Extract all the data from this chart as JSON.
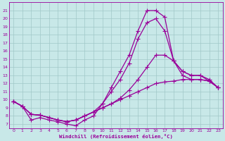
{
  "xlabel": "Windchill (Refroidissement éolien,°C)",
  "bg_color": "#c8e8e8",
  "grid_color": "#a0c8c8",
  "line_color": "#990099",
  "xlim": [
    -0.5,
    23.5
  ],
  "ylim": [
    6.5,
    22.0
  ],
  "xticks": [
    0,
    1,
    2,
    3,
    4,
    5,
    6,
    7,
    8,
    9,
    10,
    11,
    12,
    13,
    14,
    15,
    16,
    17,
    18,
    19,
    20,
    21,
    22,
    23
  ],
  "yticks": [
    7,
    8,
    9,
    10,
    11,
    12,
    13,
    14,
    15,
    16,
    17,
    18,
    19,
    20,
    21
  ],
  "line1_x": [
    0,
    1,
    2,
    3,
    4,
    5,
    6,
    7,
    8,
    9,
    10,
    11,
    12,
    13,
    14,
    15,
    16,
    17,
    18,
    19,
    20,
    21,
    22,
    23
  ],
  "line1_y": [
    9.8,
    9.2,
    8.2,
    8.1,
    7.8,
    7.5,
    7.3,
    7.5,
    8.0,
    8.5,
    9.0,
    9.5,
    10.0,
    10.5,
    11.0,
    11.5,
    12.0,
    12.2,
    12.3,
    12.5,
    12.5,
    12.5,
    12.3,
    11.5
  ],
  "line2_x": [
    0,
    1,
    2,
    3,
    4,
    5,
    6,
    7,
    8,
    9,
    10,
    11,
    12,
    13,
    14,
    15,
    16,
    17,
    18,
    19,
    20,
    21,
    22,
    23
  ],
  "line2_y": [
    9.8,
    9.2,
    8.2,
    8.1,
    7.8,
    7.5,
    7.3,
    7.5,
    8.0,
    8.5,
    9.0,
    9.5,
    10.2,
    11.2,
    12.5,
    14.0,
    15.5,
    15.5,
    14.8,
    13.5,
    13.0,
    13.0,
    12.5,
    11.5
  ],
  "line3_x": [
    0,
    1,
    2,
    3,
    4,
    5,
    6,
    7,
    8,
    9,
    10,
    11,
    12,
    13,
    14,
    15,
    16,
    17,
    18,
    19,
    20,
    21,
    22,
    23
  ],
  "line3_y": [
    9.8,
    9.2,
    8.2,
    8.1,
    7.8,
    7.5,
    7.3,
    7.5,
    8.0,
    8.5,
    9.5,
    11.0,
    12.5,
    14.5,
    17.5,
    19.5,
    20.0,
    18.5,
    14.8,
    13.0,
    12.5,
    12.5,
    12.3,
    11.5
  ],
  "line4_x": [
    0,
    1,
    2,
    3,
    4,
    5,
    6,
    7,
    8,
    9,
    10,
    11,
    12,
    13,
    14,
    15,
    16,
    17,
    18,
    19,
    20,
    21,
    22,
    23
  ],
  "line4_y": [
    9.8,
    9.2,
    7.5,
    7.8,
    7.5,
    7.3,
    7.0,
    6.8,
    7.5,
    8.0,
    9.5,
    11.5,
    13.5,
    15.5,
    18.5,
    21.0,
    21.0,
    20.2,
    14.8,
    13.5,
    13.0,
    13.0,
    12.3,
    11.5
  ],
  "marker_size": 2.5,
  "line_width": 0.9
}
